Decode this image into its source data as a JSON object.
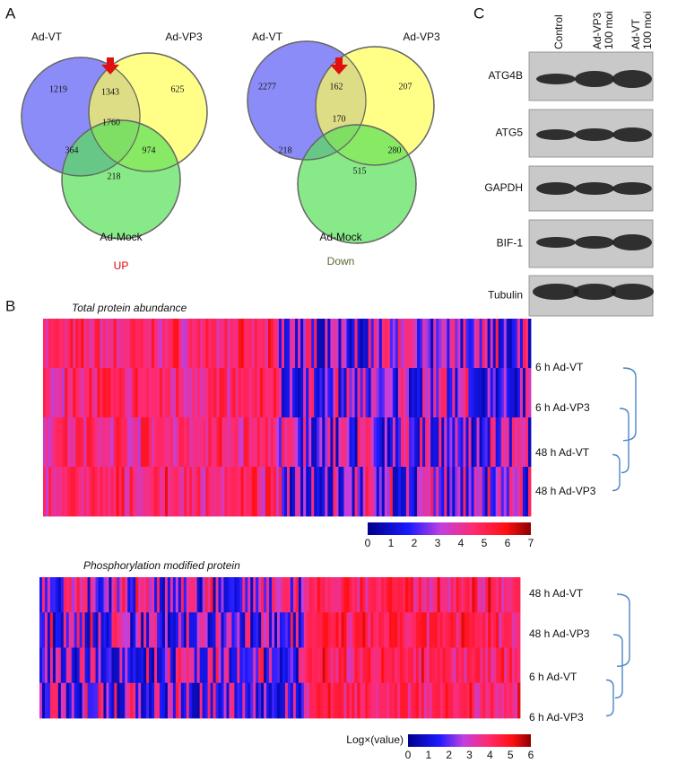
{
  "panel_a": {
    "label": "A",
    "venns": [
      {
        "sets": [
          "Ad-VT",
          "Ad-VP3",
          "Ad-Mock"
        ],
        "regions": [
          1219,
          1343,
          625,
          1760,
          364,
          974,
          218
        ],
        "caption": "UP"
      },
      {
        "sets": [
          "Ad-VT",
          "Ad-VP3",
          "Ad-Mock"
        ],
        "regions": [
          2277,
          162,
          207,
          170,
          218,
          280,
          515
        ],
        "caption": "Down"
      }
    ]
  },
  "panel_b": {
    "label": "B",
    "heatmaps": [
      {
        "title": "Total protein abundance",
        "rows": [
          "6 h Ad-VT",
          "6 h Ad-VP3",
          "48 h Ad-VT",
          "48 h Ad-VP3"
        ],
        "colorbar_ticks": [
          0,
          1,
          2,
          3,
          4,
          5,
          6,
          7
        ]
      },
      {
        "title": "Phosphorylation modified protein",
        "rows": [
          "48 h Ad-VT",
          "48 h Ad-VP3",
          "6 h Ad-VT",
          "6 h Ad-VP3"
        ],
        "colorbar_label": "Log×(value)",
        "colorbar_ticks": [
          0,
          1,
          2,
          3,
          4,
          5,
          6
        ]
      }
    ]
  },
  "panel_c": {
    "label": "C",
    "columns": [
      [
        "Control"
      ],
      [
        "Ad-VP3",
        "100 moi"
      ],
      [
        "Ad-VT",
        "100 moi"
      ]
    ],
    "rows": [
      "ATG4B",
      "ATG5",
      "GAPDH",
      "BIF-1",
      "Tubulin"
    ]
  }
}
